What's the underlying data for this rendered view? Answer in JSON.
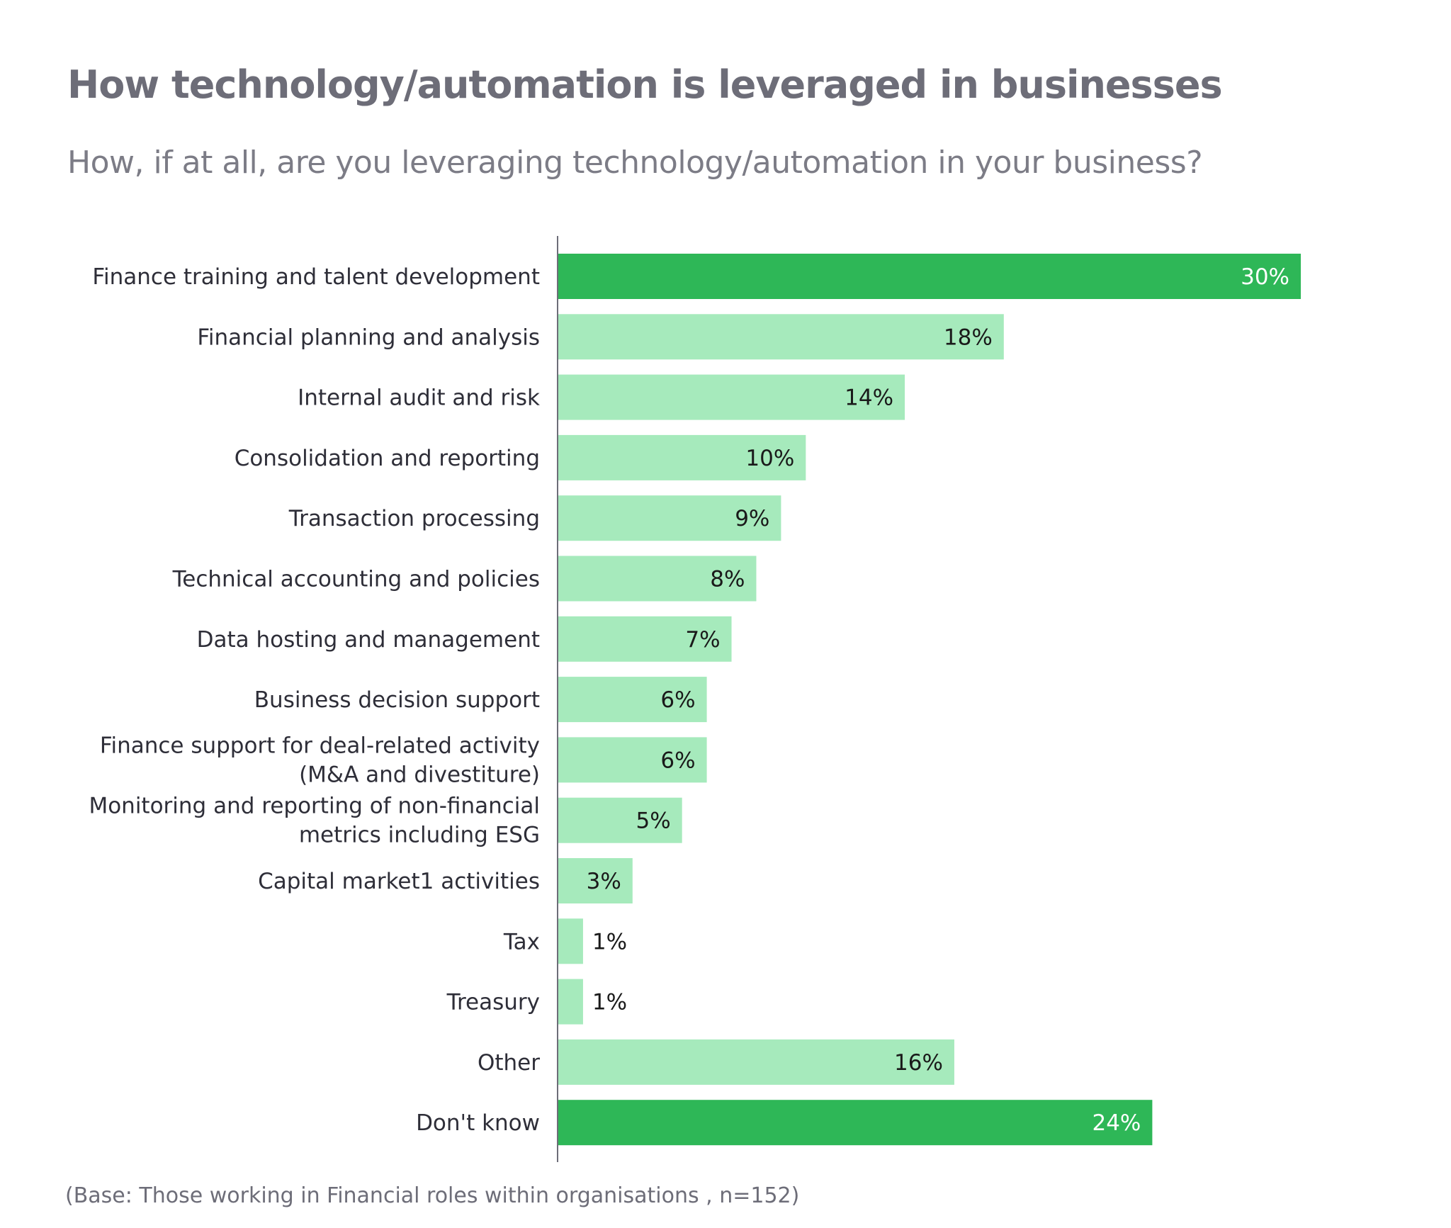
{
  "header": {
    "title": "How technology/automation is leveraged in businesses",
    "subtitle": "How, if at all, are you leveraging technology/automation in your business?"
  },
  "footer": {
    "note": "(Base: Those working in Financial roles within organisations , n=152)"
  },
  "colors": {
    "highlight_bar": "#2eb757",
    "normal_bar": "#a6eabc",
    "axis": "#6d6d78",
    "title": "#6d6d78",
    "label_text": "#2e2e38",
    "highlight_value_text": "#ffffff",
    "normal_value_text": "#1a1a1a"
  },
  "chart_data": {
    "type": "bar",
    "orientation": "horizontal",
    "title": "How technology/automation is leveraged in businesses",
    "subtitle": "How, if at all, are you leveraging technology/automation in your business?",
    "xlabel": "",
    "ylabel": "",
    "unit": "%",
    "xlim": [
      0,
      30
    ],
    "grid": false,
    "legend": "none",
    "categories": [
      [
        "Finance training and talent development"
      ],
      [
        "Financial planning and analysis"
      ],
      [
        "Internal audit and risk"
      ],
      [
        "Consolidation and reporting"
      ],
      [
        "Transaction processing"
      ],
      [
        "Technical accounting and policies"
      ],
      [
        "Data hosting and management"
      ],
      [
        "Business decision support"
      ],
      [
        "Finance support for deal-related activity",
        "(M&A and divestiture)"
      ],
      [
        "Monitoring and reporting of non-financial",
        "metrics including ESG"
      ],
      [
        "Capital market1 activities"
      ],
      [
        "Tax"
      ],
      [
        "Treasury"
      ],
      [
        "Other"
      ],
      [
        "Don't know"
      ]
    ],
    "values": [
      30,
      18,
      14,
      10,
      9,
      8,
      7,
      6,
      6,
      5,
      3,
      1,
      1,
      16,
      24
    ],
    "value_labels": [
      "30%",
      "18%",
      "14%",
      "10%",
      "9%",
      "8%",
      "7%",
      "6%",
      "6%",
      "5%",
      "3%",
      "1%",
      "1%",
      "16%",
      "24%"
    ],
    "highlighted": [
      true,
      false,
      false,
      false,
      false,
      false,
      false,
      false,
      false,
      false,
      false,
      false,
      false,
      false,
      true
    ],
    "footnote": "(Base: Those working in Financial roles within organisations , n=152)"
  }
}
